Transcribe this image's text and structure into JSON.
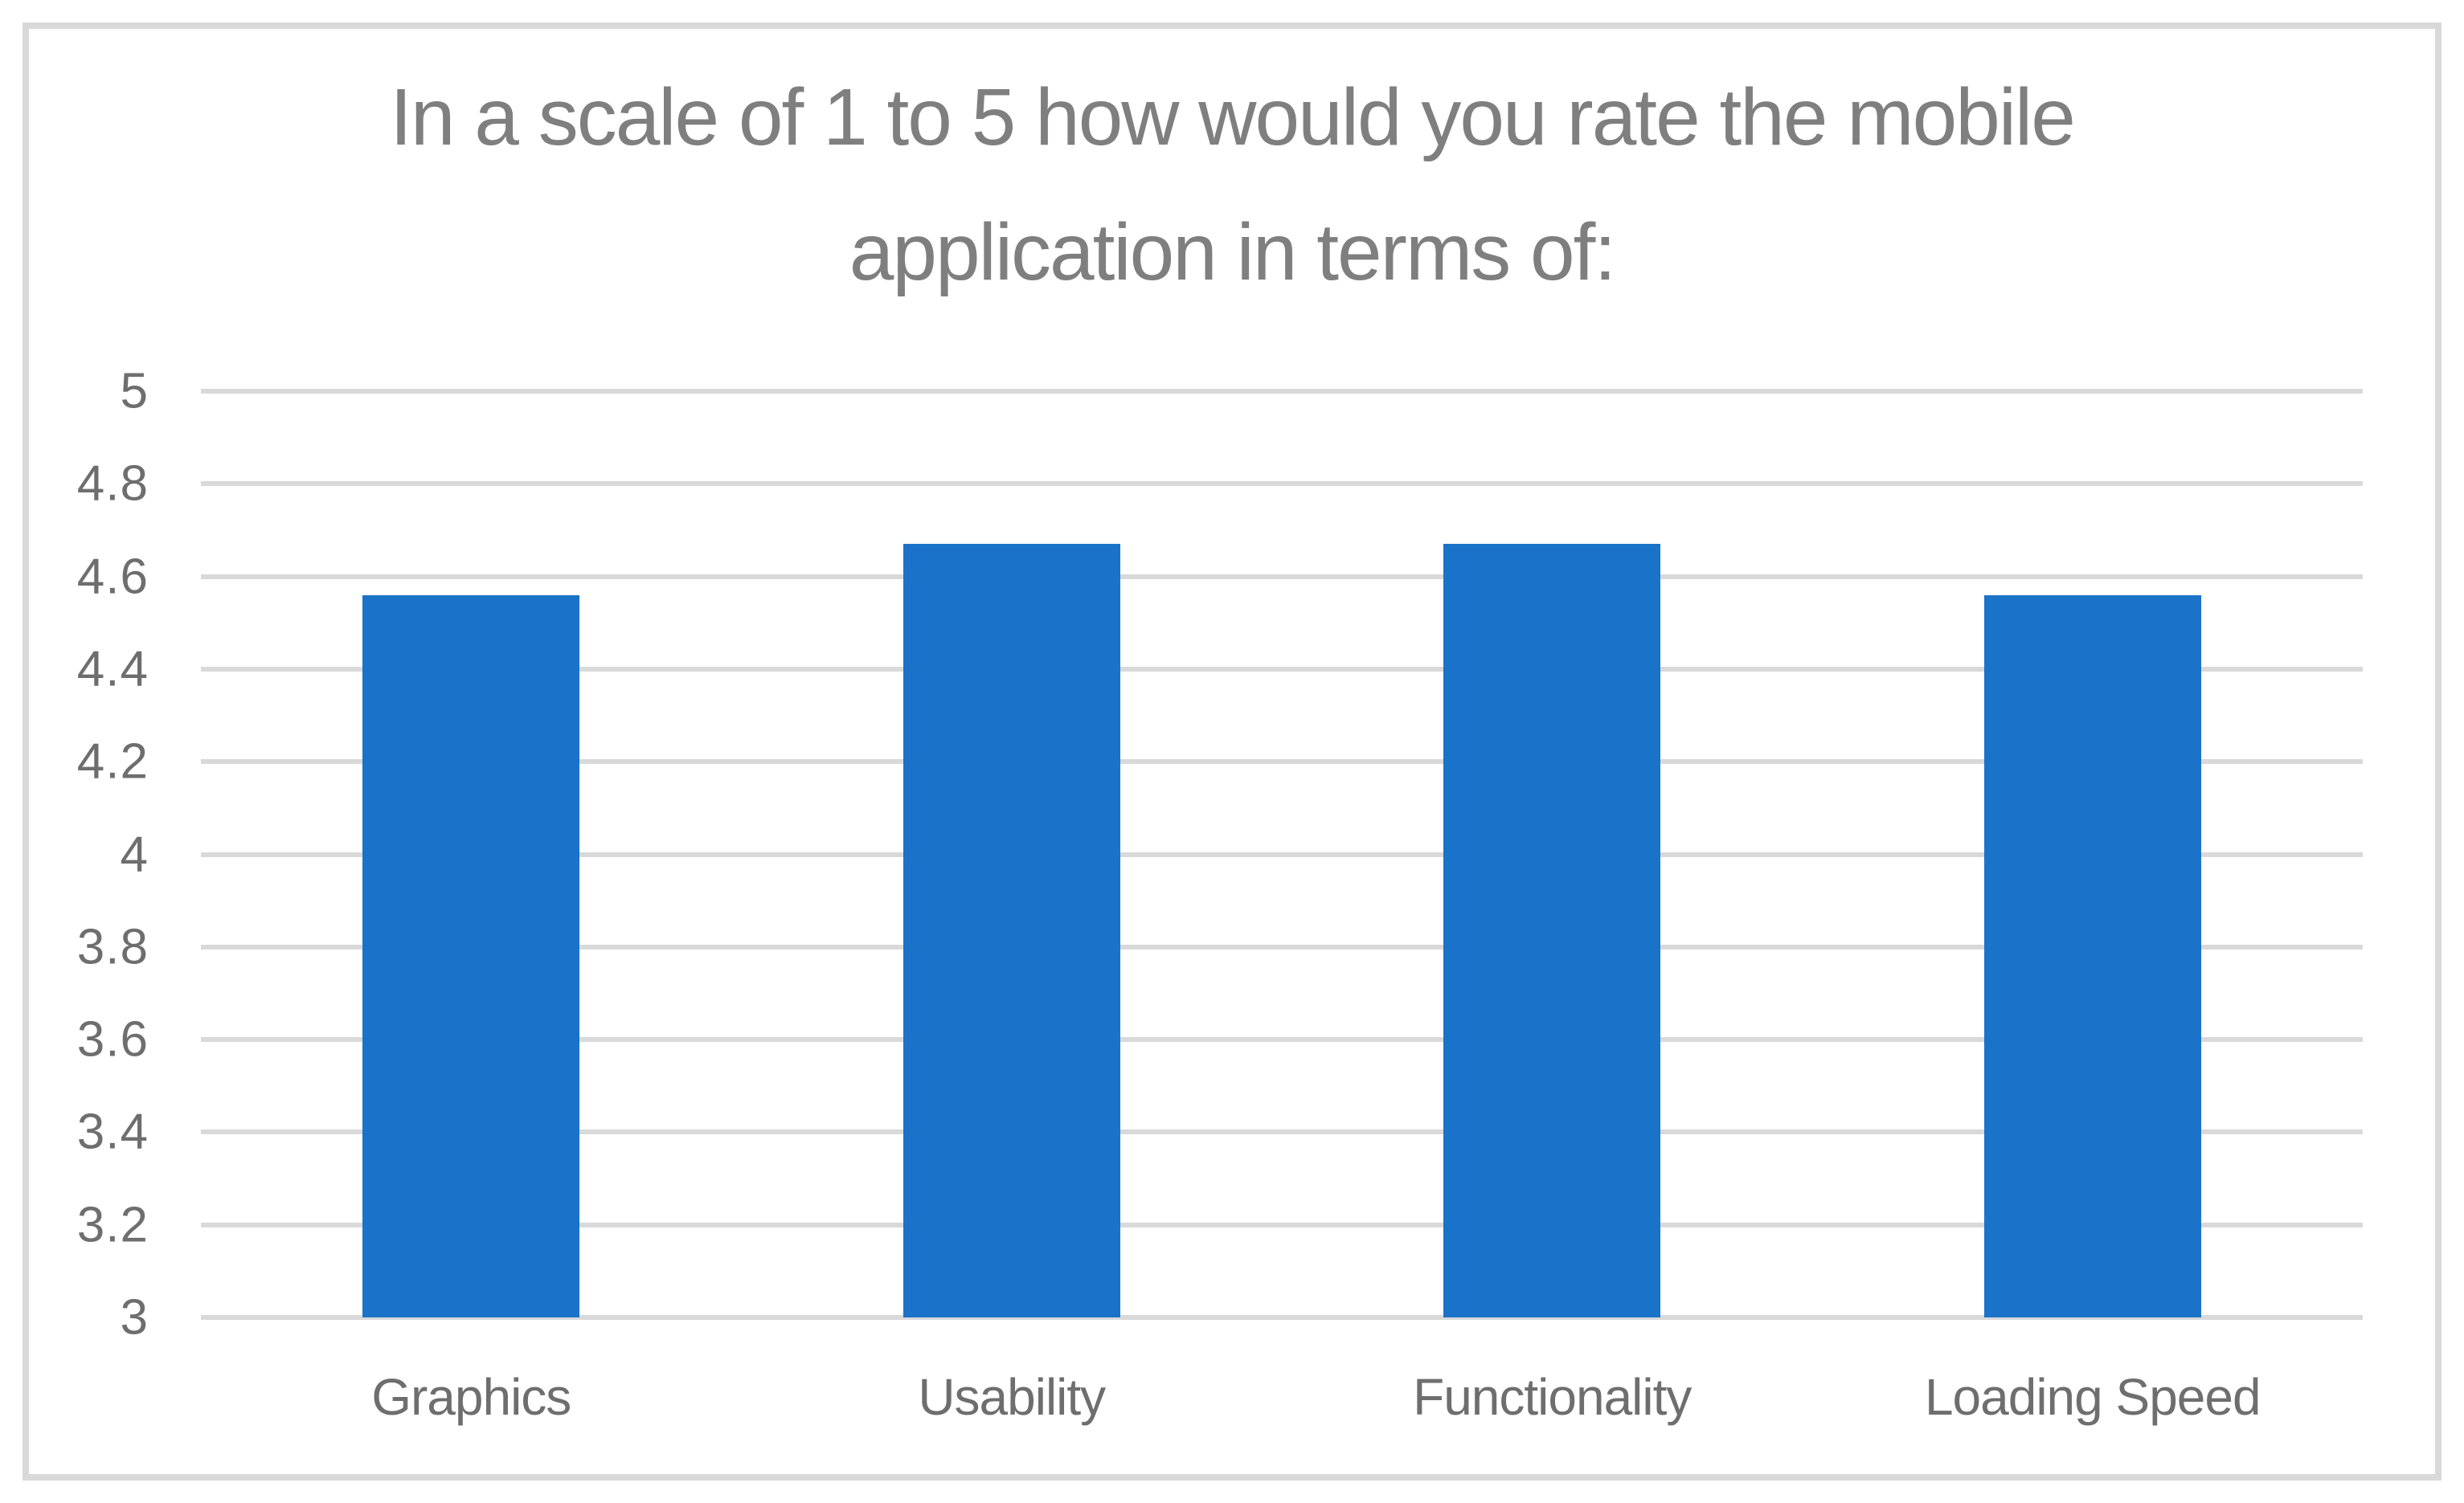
{
  "chart_data": {
    "type": "bar",
    "title": "In a scale of 1 to 5 how would you rate the mobile application in terms of:",
    "categories": [
      "Graphics",
      "Usability",
      "Functionality",
      "Loading Speed"
    ],
    "values": [
      4.56,
      4.67,
      4.67,
      4.56
    ],
    "xlabel": "",
    "ylabel": "",
    "ylim": [
      3,
      5
    ],
    "ytick_step": 0.2,
    "ytick_labels": [
      "3",
      "3.2",
      "3.4",
      "3.6",
      "3.8",
      "4",
      "4.2",
      "4.4",
      "4.6",
      "4.8",
      "5"
    ],
    "grid": true,
    "legend": false,
    "colors": {
      "bar_fill": "#1a73c8",
      "gridline": "#d9d9d9",
      "frame_border": "#d9d9d9",
      "title_text": "#7f7f7f",
      "tick_text": "#6e6e6e",
      "background": "#ffffff"
    }
  }
}
